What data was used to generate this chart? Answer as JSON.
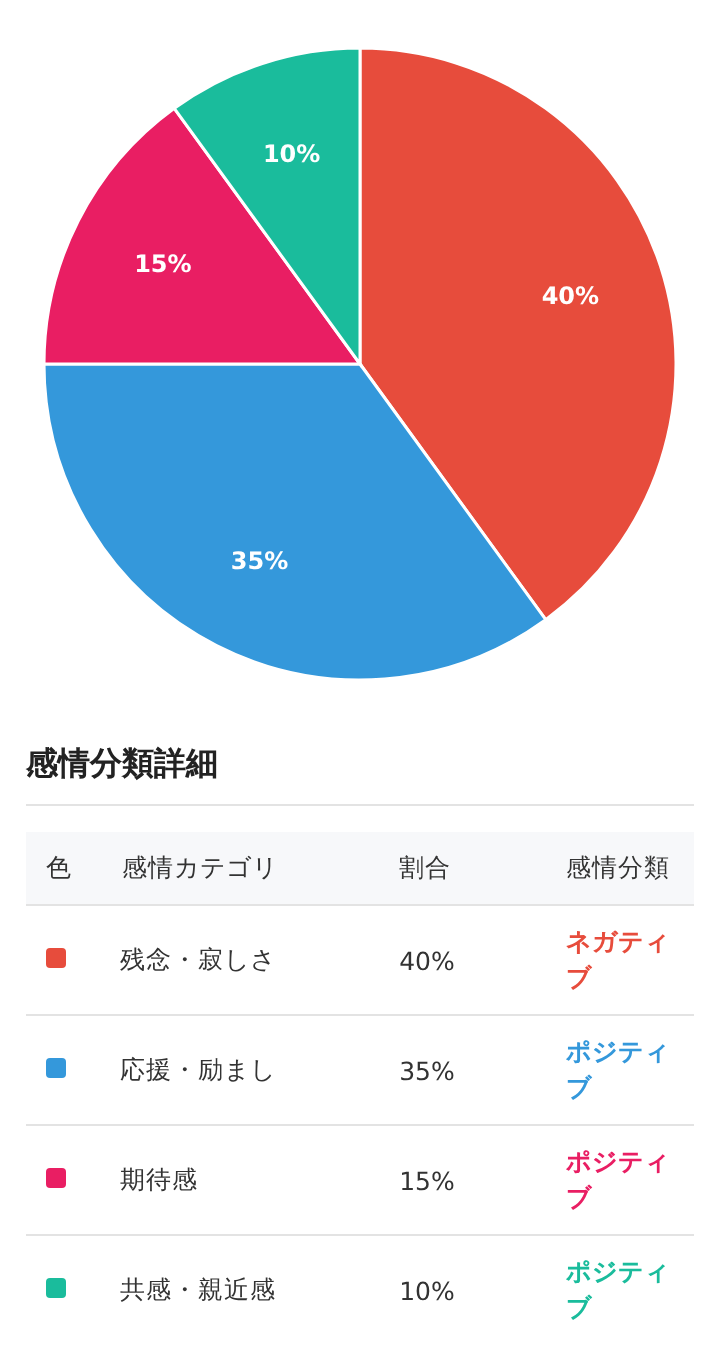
{
  "chart_data": {
    "type": "pie",
    "categories": [
      "残念・寂しさ",
      "応援・励まし",
      "期待感",
      "共感・親近感"
    ],
    "values": [
      40,
      35,
      15,
      10
    ],
    "colors": [
      "#e74c3c",
      "#3498db",
      "#e91e63",
      "#1abc9c"
    ],
    "value_labels": [
      "40%",
      "35%",
      "15%",
      "10%"
    ],
    "legend": "bottom",
    "legend_title": "感情分類詳細",
    "annotations": [
      "色",
      "感情カテゴリ",
      "割合",
      "感情分類",
      "ネガティブ",
      "ポジティブ",
      "ポジティブ",
      "ポジティブ"
    ]
  }
}
